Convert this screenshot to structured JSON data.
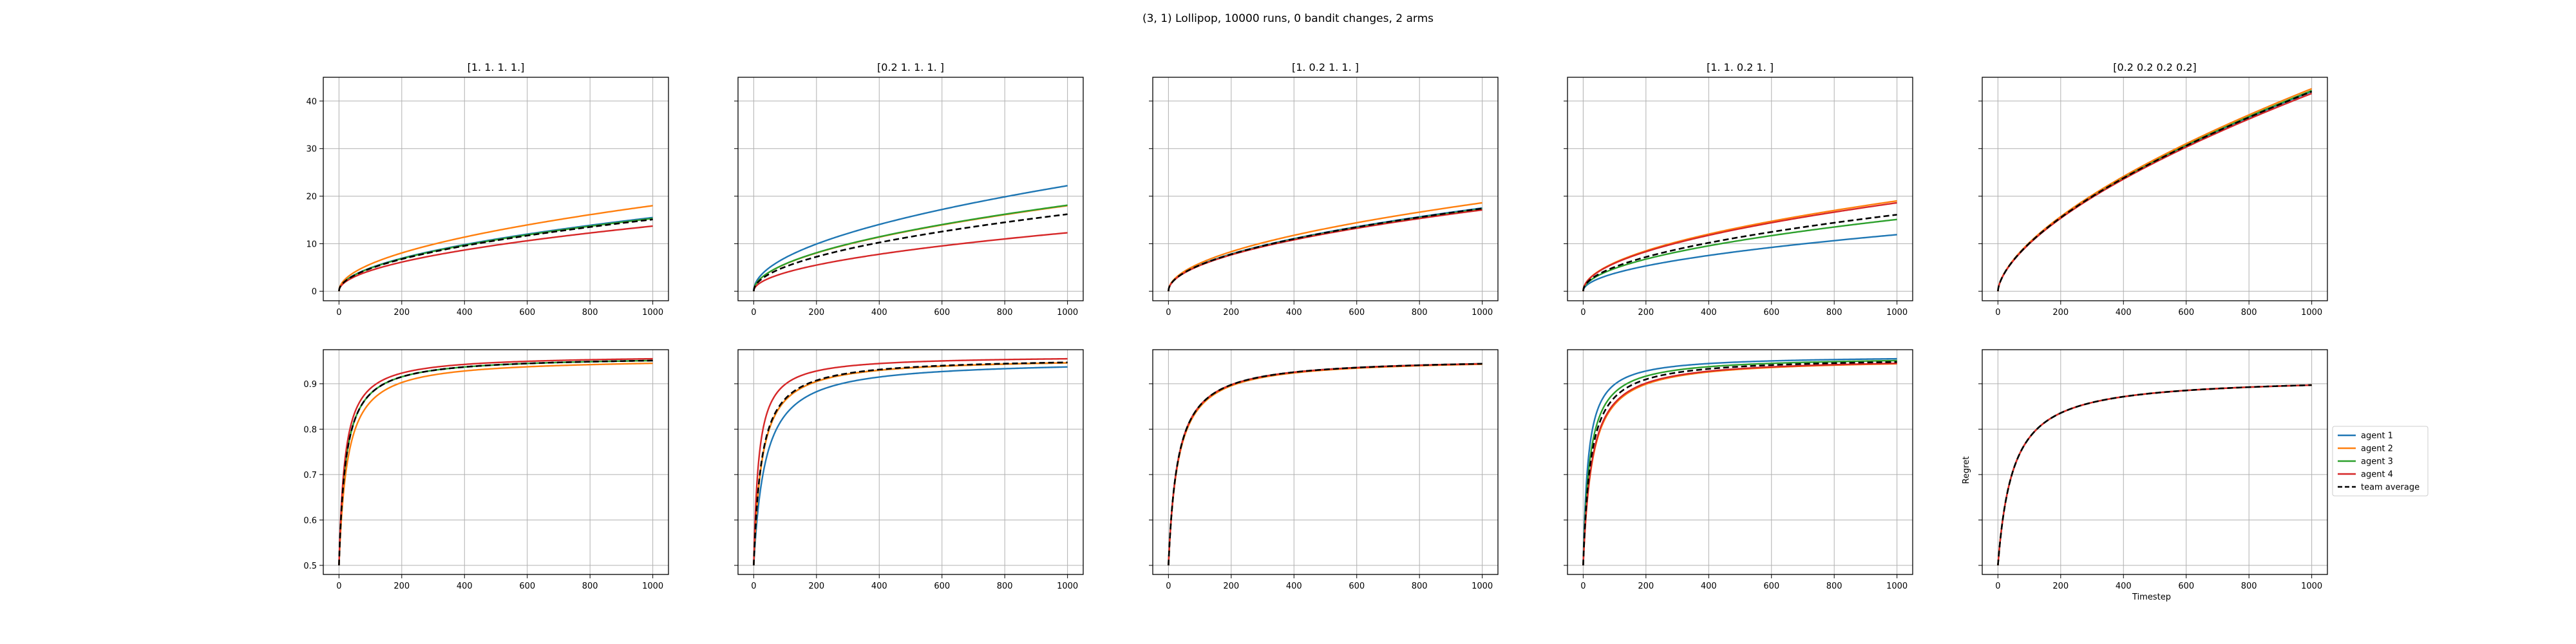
{
  "suptitle": "(3, 1) Lollipop, 10000 runs, 0 bandit changes, 2 arms",
  "xlabel": "Timestep",
  "ylabel": "Regret",
  "colors": {
    "agent1": "#1f77b4",
    "agent2": "#ff7f0e",
    "agent3": "#2ca02c",
    "agent4": "#d62728",
    "team": "#000000"
  },
  "legend": {
    "placement": "right, beside last column",
    "entries": [
      {
        "label": "agent 1",
        "color": "#1f77b4",
        "dash": false
      },
      {
        "label": "agent 2",
        "color": "#ff7f0e",
        "dash": false
      },
      {
        "label": "agent 3",
        "color": "#2ca02c",
        "dash": false
      },
      {
        "label": "agent 4",
        "color": "#d62728",
        "dash": false
      },
      {
        "label": "team average",
        "color": "#000000",
        "dash": true
      }
    ]
  },
  "chart_data": [
    {
      "type": "line",
      "row": 0,
      "col": 0,
      "title": "[1. 1. 1. 1.]",
      "xlim": [
        -50,
        1050
      ],
      "ylim": [
        -2,
        45
      ],
      "xticks": [
        0,
        200,
        400,
        600,
        800,
        1000
      ],
      "yticks": [
        0,
        10,
        20,
        30,
        40
      ],
      "grid": true,
      "series": [
        {
          "color": "#1f77b4",
          "style": "sqrt",
          "end": 15.5
        },
        {
          "color": "#2ca02c",
          "style": "sqrt",
          "end": 15.3
        },
        {
          "color": "#ff7f0e",
          "style": "sqrt",
          "end": 18.0
        },
        {
          "color": "#d62728",
          "style": "sqrt",
          "end": 13.7
        },
        {
          "color": "#000000",
          "style": "sqrt",
          "end": 15.1,
          "dash": true
        }
      ]
    },
    {
      "type": "line",
      "row": 0,
      "col": 1,
      "title": "[0.2 1.  1.  1. ]",
      "xlim": [
        -50,
        1050
      ],
      "ylim": [
        -2,
        45
      ],
      "xticks": [
        0,
        200,
        400,
        600,
        800,
        1000
      ],
      "yticks": [
        0,
        10,
        20,
        30,
        40
      ],
      "grid": true,
      "series": [
        {
          "color": "#1f77b4",
          "style": "sqrt",
          "end": 22.2
        },
        {
          "color": "#ff7f0e",
          "style": "sqrt",
          "end": 18.0
        },
        {
          "color": "#2ca02c",
          "style": "sqrt",
          "end": 18.1
        },
        {
          "color": "#d62728",
          "style": "sqrt",
          "end": 12.3
        },
        {
          "color": "#000000",
          "style": "sqrt",
          "end": 16.2,
          "dash": true
        }
      ]
    },
    {
      "type": "line",
      "row": 0,
      "col": 2,
      "title": "[1.  0.2 1.  1. ]",
      "xlim": [
        -50,
        1050
      ],
      "ylim": [
        -2,
        45
      ],
      "xticks": [
        0,
        200,
        400,
        600,
        800,
        1000
      ],
      "yticks": [
        0,
        10,
        20,
        30,
        40
      ],
      "grid": true,
      "series": [
        {
          "color": "#1f77b4",
          "style": "sqrt",
          "end": 17.5
        },
        {
          "color": "#2ca02c",
          "style": "sqrt",
          "end": 17.3
        },
        {
          "color": "#ff7f0e",
          "style": "sqrt",
          "end": 18.6
        },
        {
          "color": "#d62728",
          "style": "sqrt",
          "end": 17.1
        },
        {
          "color": "#000000",
          "style": "sqrt",
          "end": 17.4,
          "dash": true
        }
      ]
    },
    {
      "type": "line",
      "row": 0,
      "col": 3,
      "title": "[1.  1.  0.2 1. ]",
      "xlim": [
        -50,
        1050
      ],
      "ylim": [
        -2,
        45
      ],
      "xticks": [
        0,
        200,
        400,
        600,
        800,
        1000
      ],
      "yticks": [
        0,
        10,
        20,
        30,
        40
      ],
      "grid": true,
      "series": [
        {
          "color": "#1f77b4",
          "style": "sqrt",
          "end": 11.9
        },
        {
          "color": "#2ca02c",
          "style": "sqrt",
          "end": 15.1
        },
        {
          "color": "#ff7f0e",
          "style": "sqrt",
          "end": 19.0
        },
        {
          "color": "#d62728",
          "style": "sqrt",
          "end": 18.6
        },
        {
          "color": "#000000",
          "style": "sqrt",
          "end": 16.1,
          "dash": true
        }
      ]
    },
    {
      "type": "line",
      "row": 0,
      "col": 4,
      "title": "[0.2 0.2 0.2 0.2]",
      "xlim": [
        -50,
        1050
      ],
      "ylim": [
        -2,
        45
      ],
      "xticks": [
        0,
        200,
        400,
        600,
        800,
        1000
      ],
      "yticks": [
        0,
        10,
        20,
        30,
        40
      ],
      "grid": true,
      "series": [
        {
          "color": "#1f77b4",
          "style": "pow",
          "end": 42.0
        },
        {
          "color": "#2ca02c",
          "style": "pow",
          "end": 42.2
        },
        {
          "color": "#ff7f0e",
          "style": "pow",
          "end": 42.6
        },
        {
          "color": "#d62728",
          "style": "pow",
          "end": 41.6
        },
        {
          "color": "#000000",
          "style": "pow",
          "end": 42.0,
          "dash": true
        }
      ]
    },
    {
      "type": "line",
      "row": 1,
      "col": 0,
      "title": "",
      "xlim": [
        -50,
        1050
      ],
      "ylim": [
        0.48,
        0.975
      ],
      "xticks": [
        0,
        200,
        400,
        600,
        800,
        1000
      ],
      "yticks": [
        0.5,
        0.6,
        0.7,
        0.8,
        0.9
      ],
      "grid": true,
      "series": [
        {
          "color": "#1f77b4",
          "style": "sat",
          "start": 0.5,
          "end": 0.951,
          "k": 22
        },
        {
          "color": "#2ca02c",
          "style": "sat",
          "start": 0.5,
          "end": 0.951,
          "k": 22
        },
        {
          "color": "#ff7f0e",
          "style": "sat",
          "start": 0.5,
          "end": 0.945,
          "k": 27
        },
        {
          "color": "#d62728",
          "style": "sat",
          "start": 0.5,
          "end": 0.955,
          "k": 19
        },
        {
          "color": "#000000",
          "style": "sat",
          "start": 0.5,
          "end": 0.951,
          "k": 22,
          "dash": true
        }
      ]
    },
    {
      "type": "line",
      "row": 1,
      "col": 1,
      "title": "",
      "xlim": [
        -50,
        1050
      ],
      "ylim": [
        0.48,
        0.975
      ],
      "xticks": [
        0,
        200,
        400,
        600,
        800,
        1000
      ],
      "yticks": [
        0.5,
        0.6,
        0.7,
        0.8,
        0.9
      ],
      "grid": true,
      "series": [
        {
          "color": "#1f77b4",
          "style": "sat",
          "start": 0.5,
          "end": 0.937,
          "k": 37
        },
        {
          "color": "#2ca02c",
          "style": "sat",
          "start": 0.5,
          "end": 0.946,
          "k": 26
        },
        {
          "color": "#ff7f0e",
          "style": "sat",
          "start": 0.5,
          "end": 0.946,
          "k": 26
        },
        {
          "color": "#d62728",
          "style": "sat",
          "start": 0.5,
          "end": 0.955,
          "k": 16
        },
        {
          "color": "#000000",
          "style": "sat",
          "start": 0.5,
          "end": 0.947,
          "k": 25,
          "dash": true
        }
      ]
    },
    {
      "type": "line",
      "row": 1,
      "col": 2,
      "title": "",
      "xlim": [
        -50,
        1050
      ],
      "ylim": [
        0.48,
        0.975
      ],
      "xticks": [
        0,
        200,
        400,
        600,
        800,
        1000
      ],
      "yticks": [
        0.5,
        0.6,
        0.7,
        0.8,
        0.9
      ],
      "grid": true,
      "series": [
        {
          "color": "#1f77b4",
          "style": "sat",
          "start": 0.5,
          "end": 0.944,
          "k": 30
        },
        {
          "color": "#2ca02c",
          "style": "sat",
          "start": 0.5,
          "end": 0.944,
          "k": 30
        },
        {
          "color": "#ff7f0e",
          "style": "sat",
          "start": 0.5,
          "end": 0.943,
          "k": 31
        },
        {
          "color": "#d62728",
          "style": "sat",
          "start": 0.5,
          "end": 0.944,
          "k": 30
        },
        {
          "color": "#000000",
          "style": "sat",
          "start": 0.5,
          "end": 0.944,
          "k": 30,
          "dash": true
        }
      ]
    },
    {
      "type": "line",
      "row": 1,
      "col": 3,
      "title": "",
      "xlim": [
        -50,
        1050
      ],
      "ylim": [
        0.48,
        0.975
      ],
      "xticks": [
        0,
        200,
        400,
        600,
        800,
        1000
      ],
      "yticks": [
        0.5,
        0.6,
        0.7,
        0.8,
        0.9
      ],
      "grid": true,
      "series": [
        {
          "color": "#1f77b4",
          "style": "sat",
          "start": 0.5,
          "end": 0.955,
          "k": 16
        },
        {
          "color": "#2ca02c",
          "style": "sat",
          "start": 0.5,
          "end": 0.951,
          "k": 21
        },
        {
          "color": "#ff7f0e",
          "style": "sat",
          "start": 0.5,
          "end": 0.944,
          "k": 29
        },
        {
          "color": "#d62728",
          "style": "sat",
          "start": 0.5,
          "end": 0.945,
          "k": 28
        },
        {
          "color": "#000000",
          "style": "sat",
          "start": 0.5,
          "end": 0.948,
          "k": 24,
          "dash": true
        }
      ]
    },
    {
      "type": "line",
      "row": 1,
      "col": 4,
      "title": "",
      "xlim": [
        -50,
        1050
      ],
      "ylim": [
        0.48,
        0.975
      ],
      "xticks": [
        0,
        200,
        400,
        600,
        800,
        1000
      ],
      "yticks": [
        0.5,
        0.6,
        0.7,
        0.8,
        0.9
      ],
      "grid": true,
      "series": [
        {
          "color": "#1f77b4",
          "style": "sat",
          "start": 0.5,
          "end": 0.897,
          "k": 48
        },
        {
          "color": "#2ca02c",
          "style": "sat",
          "start": 0.5,
          "end": 0.897,
          "k": 48
        },
        {
          "color": "#ff7f0e",
          "style": "sat",
          "start": 0.5,
          "end": 0.897,
          "k": 48
        },
        {
          "color": "#d62728",
          "style": "sat",
          "start": 0.5,
          "end": 0.897,
          "k": 48
        },
        {
          "color": "#000000",
          "style": "sat",
          "start": 0.5,
          "end": 0.897,
          "k": 48,
          "dash": true
        }
      ]
    }
  ]
}
